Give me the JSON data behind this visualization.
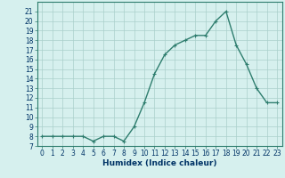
{
  "x": [
    0,
    1,
    2,
    3,
    4,
    5,
    6,
    7,
    8,
    9,
    10,
    11,
    12,
    13,
    14,
    15,
    16,
    17,
    18,
    19,
    20,
    21,
    22,
    23
  ],
  "y": [
    8,
    8,
    8,
    8,
    8,
    7.5,
    8,
    8,
    7.5,
    9,
    11.5,
    14.5,
    16.5,
    17.5,
    18,
    18.5,
    18.5,
    20,
    21,
    17.5,
    15.5,
    13,
    11.5,
    11.5
  ],
  "line_color": "#2e7d6e",
  "marker_color": "#2e7d6e",
  "bg_color": "#d6f0ee",
  "grid_color": "#aacfcb",
  "xlabel": "Humidex (Indice chaleur)",
  "ylim": [
    7,
    22
  ],
  "yticks": [
    7,
    8,
    9,
    10,
    11,
    12,
    13,
    14,
    15,
    16,
    17,
    18,
    19,
    20,
    21
  ],
  "xtick_labels": [
    "0",
    "1",
    "2",
    "3",
    "4",
    "5",
    "6",
    "7",
    "8",
    "9",
    "10",
    "11",
    "12",
    "13",
    "14",
    "15",
    "16",
    "17",
    "18",
    "19",
    "20",
    "21",
    "22",
    "23"
  ],
  "spine_color": "#2e7d6e",
  "tick_color": "#2e7d6e",
  "label_color": "#003366",
  "fontsize_xlabel": 6.5,
  "fontsize_tick": 5.5,
  "marker_size": 2.5,
  "line_width": 1.0
}
